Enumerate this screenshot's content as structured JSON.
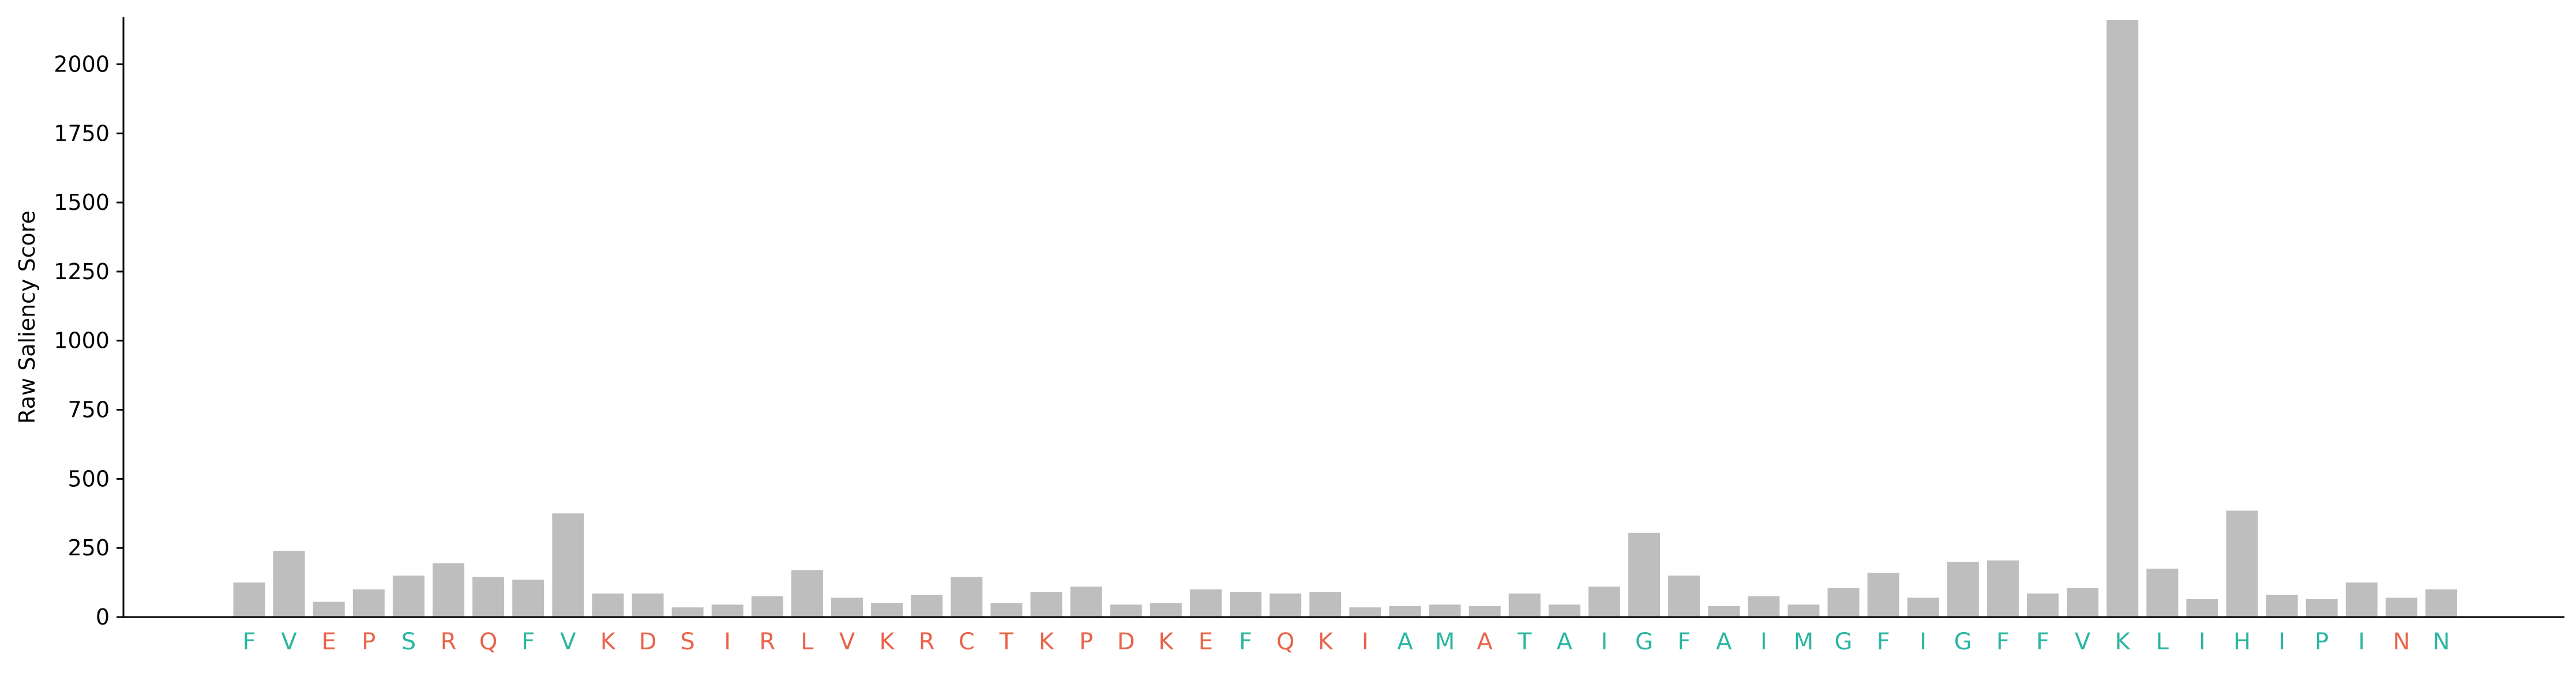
{
  "chart_data": {
    "type": "bar",
    "title": "",
    "xlabel": "",
    "ylabel": "Raw Saliency Score",
    "ylim": [
      0,
      2170
    ],
    "yticks": [
      0,
      250,
      500,
      750,
      1000,
      1250,
      1500,
      1750,
      2000
    ],
    "grid": false,
    "categories": [
      "F",
      "V",
      "E",
      "P",
      "S",
      "R",
      "Q",
      "F",
      "V",
      "K",
      "D",
      "S",
      "I",
      "R",
      "L",
      "V",
      "K",
      "R",
      "C",
      "T",
      "K",
      "P",
      "D",
      "K",
      "E",
      "F",
      "Q",
      "K",
      "I",
      "A",
      "M",
      "A",
      "T",
      "A",
      "I",
      "G",
      "F",
      "A",
      "I",
      "M",
      "G",
      "F",
      "I",
      "G",
      "F",
      "F",
      "V",
      "K",
      "L",
      "I",
      "H",
      "I",
      "P",
      "I",
      "N",
      "N"
    ],
    "values": [
      125,
      240,
      55,
      100,
      150,
      195,
      145,
      135,
      375,
      85,
      85,
      35,
      45,
      75,
      170,
      70,
      50,
      80,
      145,
      50,
      90,
      110,
      45,
      50,
      100,
      90,
      85,
      90,
      35,
      40,
      45,
      40,
      85,
      45,
      110,
      305,
      150,
      40,
      75,
      45,
      105,
      160,
      70,
      200,
      205,
      85,
      105,
      2160,
      175,
      65,
      385,
      80,
      65,
      125,
      70,
      100
    ],
    "label_colors": [
      "#2ab5a0",
      "#2ab5a0",
      "#e8634a",
      "#e8634a",
      "#2ab5a0",
      "#e8634a",
      "#e8634a",
      "#2ab5a0",
      "#2ab5a0",
      "#e8634a",
      "#e8634a",
      "#e8634a",
      "#e8634a",
      "#e8634a",
      "#e8634a",
      "#e8634a",
      "#e8634a",
      "#e8634a",
      "#e8634a",
      "#e8634a",
      "#e8634a",
      "#e8634a",
      "#e8634a",
      "#e8634a",
      "#e8634a",
      "#2ab5a0",
      "#e8634a",
      "#e8634a",
      "#e8634a",
      "#2ab5a0",
      "#2ab5a0",
      "#e8634a",
      "#2ab5a0",
      "#2ab5a0",
      "#2ab5a0",
      "#2ab5a0",
      "#2ab5a0",
      "#2ab5a0",
      "#2ab5a0",
      "#2ab5a0",
      "#2ab5a0",
      "#2ab5a0",
      "#2ab5a0",
      "#2ab5a0",
      "#2ab5a0",
      "#2ab5a0",
      "#2ab5a0",
      "#2ab5a0",
      "#2ab5a0",
      "#2ab5a0",
      "#2ab5a0",
      "#2ab5a0",
      "#2ab5a0",
      "#2ab5a0",
      "#e8634a",
      "#2ab5a0"
    ],
    "bar_color": "#bebebe"
  }
}
